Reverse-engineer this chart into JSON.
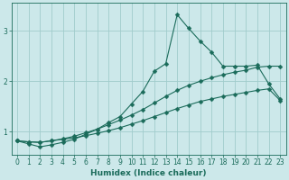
{
  "xlabel": "Humidex (Indice chaleur)",
  "bg_color": "#cce8ea",
  "grid_color": "#a0cccc",
  "line_color": "#1a6b5a",
  "xlim": [
    -0.5,
    23.5
  ],
  "ylim": [
    0.55,
    3.55
  ],
  "x": [
    0,
    1,
    2,
    3,
    4,
    5,
    6,
    7,
    8,
    9,
    10,
    11,
    12,
    13,
    14,
    15,
    16,
    17,
    18,
    19,
    20,
    21,
    22,
    23
  ],
  "line1": [
    0.82,
    0.76,
    0.7,
    0.74,
    0.79,
    0.85,
    0.95,
    1.05,
    1.18,
    1.3,
    1.55,
    1.8,
    2.2,
    2.35,
    3.32,
    3.05,
    2.8,
    2.58,
    2.3,
    2.3,
    2.3,
    2.32,
    1.95,
    1.65
  ],
  "line2": [
    0.82,
    0.8,
    0.79,
    0.82,
    0.86,
    0.91,
    0.98,
    1.05,
    1.14,
    1.23,
    1.33,
    1.44,
    1.57,
    1.7,
    1.82,
    1.92,
    2.0,
    2.07,
    2.13,
    2.18,
    2.22,
    2.28,
    2.3,
    2.3
  ],
  "line3": [
    0.82,
    0.8,
    0.79,
    0.82,
    0.85,
    0.88,
    0.92,
    0.97,
    1.02,
    1.08,
    1.15,
    1.22,
    1.3,
    1.38,
    1.46,
    1.53,
    1.6,
    1.65,
    1.7,
    1.74,
    1.78,
    1.82,
    1.85,
    1.62
  ],
  "yticks": [
    1,
    2,
    3
  ],
  "xticks": [
    0,
    1,
    2,
    3,
    4,
    5,
    6,
    7,
    8,
    9,
    10,
    11,
    12,
    13,
    14,
    15,
    16,
    17,
    18,
    19,
    20,
    21,
    22,
    23
  ],
  "markersize": 2.5,
  "linewidth": 0.8,
  "tick_fontsize": 5.5,
  "label_fontsize": 6.5
}
